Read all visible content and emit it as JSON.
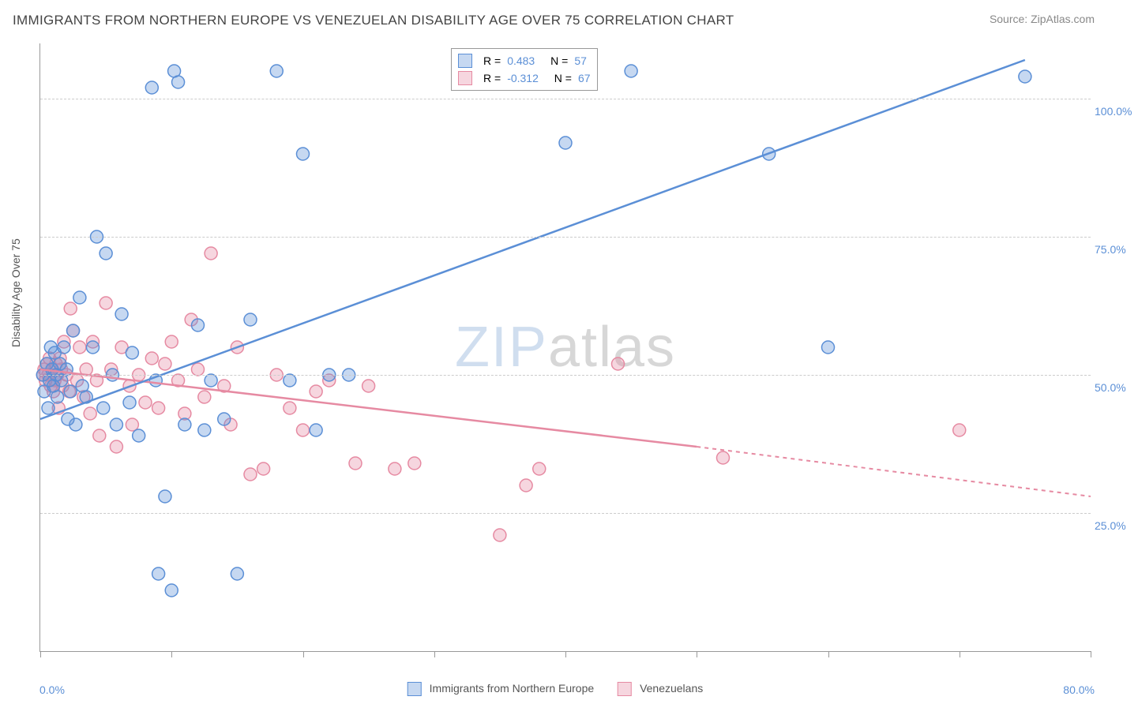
{
  "title": "IMMIGRANTS FROM NORTHERN EUROPE VS VENEZUELAN DISABILITY AGE OVER 75 CORRELATION CHART",
  "source": "Source: ZipAtlas.com",
  "ylabel": "Disability Age Over 75",
  "watermark_zip": "ZIP",
  "watermark_atlas": "atlas",
  "chart": {
    "type": "scatter",
    "background_color": "#ffffff",
    "grid_color": "#cccccc",
    "grid_dash": "4,4",
    "axis_color": "#999999",
    "tick_label_color": "#5b8fd6",
    "tick_label_fontsize": 14,
    "xlim": [
      0,
      80
    ],
    "ylim": [
      0,
      110
    ],
    "xtick_positions": [
      0,
      10,
      20,
      30,
      40,
      50,
      60,
      70,
      80
    ],
    "ytick_positions": [
      25,
      50,
      75,
      100
    ],
    "ytick_labels": [
      "25.0%",
      "50.0%",
      "75.0%",
      "100.0%"
    ],
    "xaxis_min_label": "0.0%",
    "xaxis_max_label": "80.0%",
    "marker_radius": 8,
    "marker_fill_opacity": 0.35,
    "marker_stroke_width": 1.5,
    "line_width": 2.5
  },
  "series_a": {
    "name": "Immigrants from Northern Europe",
    "color": "#5b8fd6",
    "fill": "rgba(91,143,214,0.35)",
    "R": "0.483",
    "N": "57",
    "trend": {
      "x1": 0,
      "y1": 42,
      "x2": 75,
      "y2": 107,
      "dashed_extension": false
    },
    "points": [
      [
        0.2,
        50
      ],
      [
        0.3,
        47
      ],
      [
        0.5,
        52
      ],
      [
        0.6,
        44
      ],
      [
        0.7,
        49
      ],
      [
        0.8,
        55
      ],
      [
        0.9,
        51
      ],
      [
        1.0,
        48
      ],
      [
        1.1,
        54
      ],
      [
        1.2,
        50
      ],
      [
        1.3,
        46
      ],
      [
        1.5,
        52
      ],
      [
        1.6,
        49
      ],
      [
        1.8,
        55
      ],
      [
        2.0,
        51
      ],
      [
        2.1,
        42
      ],
      [
        2.3,
        47
      ],
      [
        2.5,
        58
      ],
      [
        2.7,
        41
      ],
      [
        3.0,
        64
      ],
      [
        3.2,
        48
      ],
      [
        3.5,
        46
      ],
      [
        4.0,
        55
      ],
      [
        4.3,
        75
      ],
      [
        4.8,
        44
      ],
      [
        5.0,
        72
      ],
      [
        5.5,
        50
      ],
      [
        5.8,
        41
      ],
      [
        6.2,
        61
      ],
      [
        6.8,
        45
      ],
      [
        7.0,
        54
      ],
      [
        7.5,
        39
      ],
      [
        8.5,
        102
      ],
      [
        8.8,
        49
      ],
      [
        9.0,
        14
      ],
      [
        9.5,
        28
      ],
      [
        10.0,
        11
      ],
      [
        10.2,
        105
      ],
      [
        10.5,
        103
      ],
      [
        11.0,
        41
      ],
      [
        12.0,
        59
      ],
      [
        12.5,
        40
      ],
      [
        13.0,
        49
      ],
      [
        14.0,
        42
      ],
      [
        15.0,
        14
      ],
      [
        16.0,
        60
      ],
      [
        18.0,
        105
      ],
      [
        19.0,
        49
      ],
      [
        20.0,
        90
      ],
      [
        21.0,
        40
      ],
      [
        22.0,
        50
      ],
      [
        23.5,
        50
      ],
      [
        40.0,
        92
      ],
      [
        45.0,
        105
      ],
      [
        55.5,
        90
      ],
      [
        60.0,
        55
      ],
      [
        75.0,
        104
      ]
    ]
  },
  "series_b": {
    "name": "Venezuelans",
    "color": "#e68aa2",
    "fill": "rgba(230,138,162,0.35)",
    "R": "-0.312",
    "N": "67",
    "trend": {
      "x1": 0,
      "y1": 51,
      "x2": 50,
      "y2": 37,
      "dashed_extension": true,
      "dash_x2": 80,
      "dash_y2": 28
    },
    "points": [
      [
        0.2,
        50
      ],
      [
        0.3,
        51
      ],
      [
        0.4,
        49
      ],
      [
        0.5,
        52
      ],
      [
        0.6,
        50
      ],
      [
        0.7,
        53
      ],
      [
        0.8,
        48
      ],
      [
        0.9,
        51
      ],
      [
        1.0,
        47
      ],
      [
        1.1,
        49
      ],
      [
        1.2,
        52
      ],
      [
        1.3,
        50
      ],
      [
        1.4,
        44
      ],
      [
        1.5,
        53
      ],
      [
        1.6,
        51
      ],
      [
        1.7,
        48
      ],
      [
        1.8,
        56
      ],
      [
        2.0,
        50
      ],
      [
        2.2,
        47
      ],
      [
        2.3,
        62
      ],
      [
        2.5,
        58
      ],
      [
        2.8,
        49
      ],
      [
        3.0,
        55
      ],
      [
        3.3,
        46
      ],
      [
        3.5,
        51
      ],
      [
        3.8,
        43
      ],
      [
        4.0,
        56
      ],
      [
        4.3,
        49
      ],
      [
        4.5,
        39
      ],
      [
        5.0,
        63
      ],
      [
        5.4,
        51
      ],
      [
        5.8,
        37
      ],
      [
        6.2,
        55
      ],
      [
        6.8,
        48
      ],
      [
        7.0,
        41
      ],
      [
        7.5,
        50
      ],
      [
        8.0,
        45
      ],
      [
        8.5,
        53
      ],
      [
        9.0,
        44
      ],
      [
        9.5,
        52
      ],
      [
        10.0,
        56
      ],
      [
        10.5,
        49
      ],
      [
        11.0,
        43
      ],
      [
        11.5,
        60
      ],
      [
        12.0,
        51
      ],
      [
        12.5,
        46
      ],
      [
        13.0,
        72
      ],
      [
        14.0,
        48
      ],
      [
        14.5,
        41
      ],
      [
        15.0,
        55
      ],
      [
        16.0,
        32
      ],
      [
        17.0,
        33
      ],
      [
        18.0,
        50
      ],
      [
        19.0,
        44
      ],
      [
        20.0,
        40
      ],
      [
        21.0,
        47
      ],
      [
        22.0,
        49
      ],
      [
        24.0,
        34
      ],
      [
        25.0,
        48
      ],
      [
        27.0,
        33
      ],
      [
        28.5,
        34
      ],
      [
        35.0,
        21
      ],
      [
        37.0,
        30
      ],
      [
        38.0,
        33
      ],
      [
        44.0,
        52
      ],
      [
        52.0,
        35
      ],
      [
        70.0,
        40
      ]
    ]
  },
  "legend": {
    "R_label": "R =",
    "N_label": "N ="
  }
}
